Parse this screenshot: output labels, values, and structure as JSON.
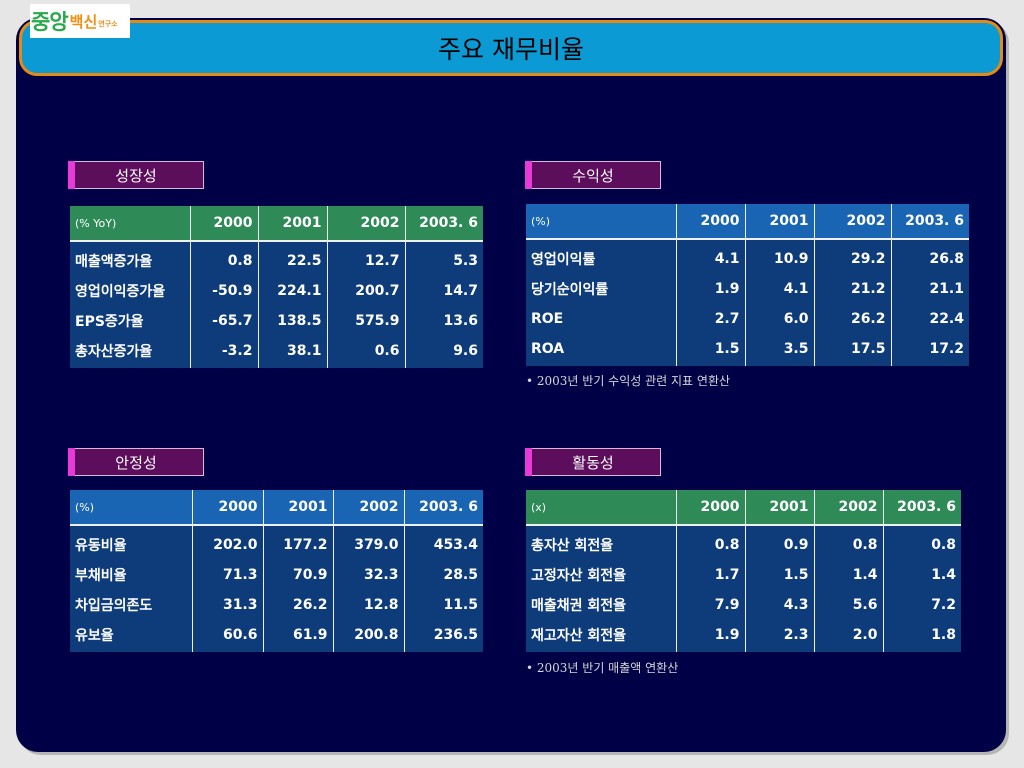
{
  "logo": {
    "part1": "중앙",
    "part2": "백신",
    "part3": "연구소"
  },
  "title": "주요 재무비율",
  "growth": {
    "label": "성장성",
    "unit": "(% YoY)",
    "years": [
      "2000",
      "2001",
      "2002",
      "2003. 6"
    ],
    "rows": [
      {
        "name": "매출액증가율",
        "values": [
          "0.8",
          "22.5",
          "12.7",
          "5.3"
        ]
      },
      {
        "name": "영업이익증가율",
        "values": [
          "-50.9",
          "224.1",
          "200.7",
          "14.7"
        ]
      },
      {
        "name": "EPS증가율",
        "values": [
          "-65.7",
          "138.5",
          "575.9",
          "13.6"
        ]
      },
      {
        "name": "총자산증가율",
        "values": [
          "-3.2",
          "38.1",
          "0.6",
          "9.6"
        ]
      }
    ]
  },
  "profit": {
    "label": "수익성",
    "unit": "(%)",
    "years": [
      "2000",
      "2001",
      "2002",
      "2003. 6"
    ],
    "rows": [
      {
        "name": "영업이익률",
        "values": [
          "4.1",
          "10.9",
          "29.2",
          "26.8"
        ]
      },
      {
        "name": "당기순이익률",
        "values": [
          "1.9",
          "4.1",
          "21.2",
          "21.1"
        ]
      },
      {
        "name": "ROE",
        "values": [
          "2.7",
          "6.0",
          "26.2",
          "22.4"
        ]
      },
      {
        "name": "ROA",
        "values": [
          "1.5",
          "3.5",
          "17.5",
          "17.2"
        ]
      }
    ],
    "note": "• 2003년 반기 수익성 관련 지표 연환산"
  },
  "stability": {
    "label": "안정성",
    "unit": "(%)",
    "years": [
      "2000",
      "2001",
      "2002",
      "2003. 6"
    ],
    "rows": [
      {
        "name": "유동비율",
        "values": [
          "202.0",
          "177.2",
          "379.0",
          "453.4"
        ]
      },
      {
        "name": "부채비율",
        "values": [
          "71.3",
          "70.9",
          "32.3",
          "28.5"
        ]
      },
      {
        "name": "차입금의존도",
        "values": [
          "31.3",
          "26.2",
          "12.8",
          "11.5"
        ]
      },
      {
        "name": "유보율",
        "values": [
          "60.6",
          "61.9",
          "200.8",
          "236.5"
        ]
      }
    ]
  },
  "activity": {
    "label": "활동성",
    "unit": "(x)",
    "years": [
      "2000",
      "2001",
      "2002",
      "2003. 6"
    ],
    "rows": [
      {
        "name": "총자산 회전율",
        "values": [
          "0.8",
          "0.9",
          "0.8",
          "0.8"
        ]
      },
      {
        "name": "고정자산 회전율",
        "values": [
          "1.7",
          "1.5",
          "1.4",
          "1.4"
        ]
      },
      {
        "name": "매출채권 회전율",
        "values": [
          "7.9",
          "4.3",
          "5.6",
          "7.2"
        ]
      },
      {
        "name": "재고자산 회전율",
        "values": [
          "1.9",
          "2.3",
          "2.0",
          "1.8"
        ]
      }
    ],
    "note": "• 2003년 반기 매출액 연환산"
  },
  "colors": {
    "background": "#000046",
    "title_bar": "#0b9ad3",
    "title_border": "#e68a14",
    "header_green": "#2e8b57",
    "header_blue": "#1a65b3",
    "table_body": "#0e3c7a",
    "section_label": "#5c0e5c",
    "section_accent": "#e83ad9"
  }
}
